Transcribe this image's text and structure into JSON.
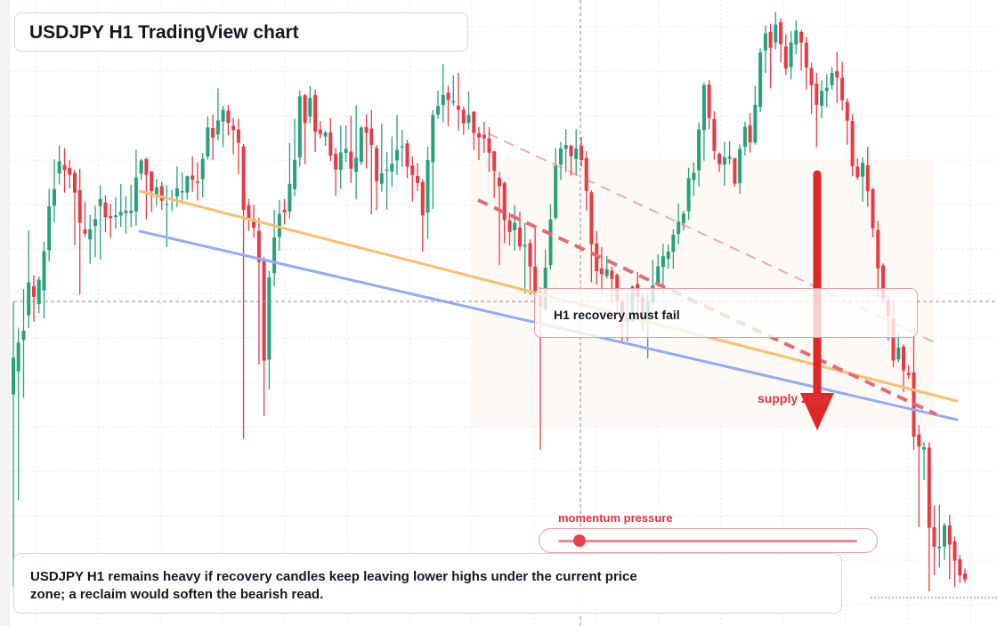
{
  "colors": {
    "up": "#26a17b",
    "down": "#ea3943",
    "trend_orange": "#f8bf6c",
    "trend_blue": "#93abf5",
    "resistance_dashed": "#e46b74",
    "arrow": "#de2828",
    "label_red": "#e0343f"
  },
  "title": {
    "text": "USDJPY H1 TradingView chart"
  },
  "callout": {
    "text": "H1 recovery must fail"
  },
  "supply_label": {
    "text": "supply zone"
  },
  "momentum": {
    "label": "momentum pressure",
    "level": 0.07
  },
  "summary": {
    "text": "USDJPY H1 remains heavy if recovery candles keep leaving lower highs under the current price zone; a reclaim would soften the bearish read."
  },
  "icons": {
    "arrow": "down-arrow-icon"
  },
  "chart_data": {
    "type": "candlestick",
    "symbol": "USDJPY",
    "timeframe": "H1",
    "ylim": [
      0,
      100
    ],
    "grid": true,
    "candles": [
      [
        37.0,
        42.85,
        51.74,
        6.24
      ],
      [
        40.69,
        45.29,
        47.66,
        20.05
      ],
      [
        45.7,
        47.17,
        53.81,
        36.45
      ],
      [
        49.65,
        54.92,
        63.17,
        47.59
      ],
      [
        54.26,
        52.59,
        56.03,
        48.64
      ],
      [
        51.4,
        55.32,
        55.83,
        49.98
      ],
      [
        53.59,
        59.86,
        61.36,
        49.11
      ],
      [
        60.03,
        67.04,
        69.82,
        58.21
      ],
      [
        67.14,
        69.78,
        74.55,
        64.5
      ],
      [
        72.29,
        74.24,
        76.76,
        70.53
      ],
      [
        73.63,
        72.84,
        76.34,
        69.24
      ],
      [
        73.18,
        72.07,
        74.4,
        69.91
      ],
      [
        72.39,
        69.24,
        72.88,
        60.86
      ],
      [
        69.6,
        64.42,
        73.07,
        52.93
      ],
      [
        63.35,
        62.65,
        67.73,
        62.15
      ],
      [
        61.75,
        63.4,
        65.65,
        57.85
      ],
      [
        63.88,
        64.98,
        67.15,
        58.92
      ],
      [
        67.08,
        68.22,
        70.36,
        58.53
      ],
      [
        67.69,
        65.33,
        68.8,
        62.88
      ],
      [
        65.47,
        65.16,
        67.44,
        61.98
      ],
      [
        65.33,
        65.6,
        68.51,
        63.45
      ],
      [
        65.55,
        66.18,
        70.6,
        63.72
      ],
      [
        65.93,
        66.34,
        68.66,
        62.71
      ],
      [
        65.96,
        66.38,
        70.5,
        63.72
      ],
      [
        66.21,
        71.65,
        76.06,
        63.9
      ],
      [
        72.24,
        74.36,
        74.68,
        71.22
      ],
      [
        74.6,
        72.08,
        74.81,
        64.99
      ],
      [
        72.64,
        69.47,
        70.02,
        66.13
      ],
      [
        68.89,
        70.07,
        71.39,
        67.1
      ],
      [
        70.25,
        67.94,
        70.99,
        66.52
      ],
      [
        67.34,
        67.39,
        70.38,
        60.54
      ],
      [
        68.13,
        68.33,
        69.71,
        66.29
      ],
      [
        68.59,
        69.93,
        73.43,
        66.93
      ],
      [
        69.26,
        69.48,
        72.43,
        67.58
      ],
      [
        69.23,
        71.84,
        71.95,
        68.09
      ],
      [
        71.94,
        71.28,
        74.98,
        69.36
      ],
      [
        70.99,
        70.78,
        74.07,
        67.97
      ],
      [
        71.38,
        74.63,
        75.57,
        68.47
      ],
      [
        75.0,
        79.64,
        81.4,
        74.51
      ],
      [
        79.55,
        78.03,
        81.68,
        74.48
      ],
      [
        78.52,
        80.76,
        85.89,
        77.54
      ],
      [
        80.58,
        82.43,
        83.08,
        76.52
      ],
      [
        82.31,
        80.36,
        83.26,
        78.38
      ],
      [
        79.91,
        79.22,
        81.16,
        75.31
      ],
      [
        79.32,
        77.21,
        81.04,
        72.22
      ],
      [
        76.64,
        66.49,
        76.99,
        29.88
      ],
      [
        67.23,
        64.89,
        68.24,
        63.16
      ],
      [
        65.03,
        63.63,
        67.33,
        62.02
      ],
      [
        63.12,
        58.13,
        65.21,
        41.8
      ],
      [
        58.45,
        42.38,
        58.9,
        33.51
      ],
      [
        42.55,
        55.68,
        56.72,
        37.74
      ],
      [
        56.35,
        62.07,
        66.44,
        54.28
      ],
      [
        62.13,
        65.81,
        68.05,
        59.91
      ],
      [
        66.5,
        66.06,
        68.18,
        64.15
      ],
      [
        66.22,
        70.63,
        77.16,
        65.05
      ],
      [
        69.78,
        74.46,
        81.05,
        68.71
      ],
      [
        74.86,
        84.62,
        85.54,
        73.39
      ],
      [
        84.79,
        80.34,
        85.04,
        73.76
      ],
      [
        81.4,
        84.34,
        86.28,
        80.29
      ],
      [
        84.85,
        78.94,
        85.69,
        75.71
      ],
      [
        79.3,
        78.61,
        80.65,
        77.96
      ],
      [
        78.18,
        78.83,
        79.09,
        76.69
      ],
      [
        78.86,
        75.13,
        81.14,
        74.28
      ],
      [
        75.43,
        72.95,
        76.39,
        68.74
      ],
      [
        72.91,
        75.64,
        79.89,
        69.87
      ],
      [
        75.57,
        76.22,
        79.98,
        74.06
      ],
      [
        75.78,
        73.05,
        81.51,
        70.79
      ],
      [
        72.55,
        74.8,
        83.19,
        68.17
      ],
      [
        74.15,
        79.63,
        79.89,
        73.67
      ],
      [
        79.7,
        78.77,
        81.73,
        73.1
      ],
      [
        79.47,
        76.82,
        82.45,
        65.77
      ],
      [
        76.35,
        71.07,
        76.8,
        66.43
      ],
      [
        70.63,
        72.31,
        80.29,
        69.37
      ],
      [
        72.7,
        72.92,
        75.73,
        66.51
      ],
      [
        72.57,
        73.86,
        78.18,
        70.16
      ],
      [
        74.36,
        76.07,
        81.65,
        72.0
      ],
      [
        76.54,
        76.63,
        79.25,
        73.35
      ],
      [
        77.08,
        73.37,
        77.69,
        71.55
      ],
      [
        73.58,
        72.03,
        75.0,
        67.78
      ],
      [
        71.89,
        70.76,
        73.95,
        69.47
      ],
      [
        70.93,
        65.59,
        71.35,
        59.8
      ],
      [
        66.06,
        74.43,
        76.59,
        61.81
      ],
      [
        74.09,
        81.64,
        82.41,
        66.6
      ],
      [
        81.72,
        83.07,
        85.53,
        81.01
      ],
      [
        83.23,
        84.83,
        89.79,
        80.43
      ],
      [
        85.18,
        84.05,
        86.29,
        79.85
      ],
      [
        83.64,
        83.88,
        87.96,
        83.08
      ],
      [
        83.13,
        82.47,
        88.37,
        79.14
      ],
      [
        82.47,
        80.3,
        82.99,
        78.46
      ],
      [
        80.36,
        81.64,
        85.4,
        79.3
      ],
      [
        82.14,
        78.75,
        82.27,
        76.05
      ],
      [
        78.69,
        78.04,
        79.71,
        74.44
      ],
      [
        78.46,
        77.91,
        80.53,
        75.6
      ],
      [
        77.89,
        75.61,
        79.69,
        72.53
      ],
      [
        75.82,
        72.71,
        75.89,
        68.36
      ],
      [
        71.61,
        70.26,
        72.52,
        57.7
      ],
      [
        70.76,
        64.85,
        70.99,
        61.18
      ],
      [
        64.8,
        62.95,
        66.1,
        60.78
      ],
      [
        63.21,
        64.39,
        67.22,
        59.98
      ],
      [
        63.65,
        60.64,
        66.15,
        60.02
      ],
      [
        60.6,
        60.89,
        64.41,
        53.14
      ],
      [
        61.15,
        57.44,
        61.76,
        52.87
      ],
      [
        57.41,
        52.95,
        63.55,
        48.64
      ],
      [
        53.54,
        51.15,
        54.1,
        28.17
      ],
      [
        50.61,
        57.22,
        60.1,
        50.05
      ],
      [
        57.66,
        64.95,
        67.38,
        56.93
      ],
      [
        65.17,
        73.49,
        76.35,
        64.89
      ],
      [
        73.71,
        76.27,
        77.32,
        71.25
      ],
      [
        76.2,
        76.85,
        79.36,
        72.52
      ],
      [
        76.74,
        75.07,
        76.91,
        71.96
      ],
      [
        74.6,
        76.25,
        79.37,
        72.06
      ],
      [
        76.74,
        74.42,
        78.07,
        73.43
      ],
      [
        74.76,
        69.51,
        75.88,
        66.35
      ],
      [
        69.27,
        60.99,
        69.6,
        54.91
      ],
      [
        61.12,
        56.68,
        63.11,
        54.57
      ],
      [
        57.1,
        56.22,
        60.54,
        53.04
      ],
      [
        55.89,
        56.97,
        59.09,
        55.53
      ],
      [
        56.77,
        55.43,
        57.42,
        51.5
      ],
      [
        56.09,
        51.98,
        56.37,
        50.14
      ],
      [
        51.9,
        50.08,
        52.16,
        45.49
      ],
      [
        49.68,
        48.61,
        53.53,
        45.46
      ],
      [
        48.69,
        54.23,
        54.41,
        48.49
      ],
      [
        54.61,
        52.59,
        56.55,
        50.08
      ],
      [
        52.45,
        49.44,
        53.06,
        47.15
      ],
      [
        49.95,
        51.84,
        53.22,
        42.73
      ],
      [
        51.64,
        54.4,
        58.49,
        51.37
      ],
      [
        54.62,
        57.47,
        59.35,
        54.17
      ],
      [
        57.36,
        59.06,
        61.1,
        52.99
      ],
      [
        58.61,
        59.81,
        60.93,
        57.09
      ],
      [
        59.77,
        62.48,
        63.36,
        57.04
      ],
      [
        62.61,
        64.57,
        67.49,
        60.93
      ],
      [
        64.33,
        65.87,
        66.34,
        63.18
      ],
      [
        66.27,
        71.55,
        73.18,
        64.89
      ],
      [
        71.21,
        72.41,
        74.05,
        68.67
      ],
      [
        72.8,
        79.35,
        80.44,
        70.22
      ],
      [
        79.21,
        86.41,
        86.76,
        74.32
      ],
      [
        86.49,
        81.13,
        87.19,
        79.37
      ],
      [
        81.0,
        75.9,
        82.22,
        74.52
      ],
      [
        75.46,
        73.78,
        75.66,
        72.56
      ],
      [
        73.71,
        74.89,
        77.28,
        70.34
      ],
      [
        74.62,
        74.98,
        77.44,
        73.75
      ],
      [
        74.74,
        70.65,
        74.82,
        70.19
      ],
      [
        70.72,
        76.22,
        76.92,
        69.05
      ],
      [
        76.56,
        79.72,
        80.54,
        75.16
      ],
      [
        79.99,
        77.27,
        81.98,
        75.66
      ],
      [
        77.23,
        83.26,
        86.23,
        76.9
      ],
      [
        82.88,
        91.6,
        92.29,
        82.13
      ],
      [
        91.93,
        94.65,
        95.92,
        88.33
      ],
      [
        94.92,
        92.37,
        96.19,
        85.9
      ],
      [
        93.24,
        96.08,
        98.11,
        92.13
      ],
      [
        96.43,
        92.93,
        97.08,
        90.06
      ],
      [
        92.57,
        89.06,
        94.53,
        88.01
      ],
      [
        89.29,
        93.23,
        95.02,
        87.32
      ],
      [
        92.92,
        95.12,
        96.72,
        91.38
      ],
      [
        94.89,
        93.21,
        95.24,
        88.73
      ],
      [
        93.18,
        89.22,
        94.08,
        85.69
      ],
      [
        89.16,
        86.41,
        90.03,
        81.8
      ],
      [
        86.65,
        83.25,
        88.36,
        76.48
      ],
      [
        83.11,
        85.48,
        87.16,
        81.09
      ],
      [
        85.48,
        85.99,
        88.15,
        82.85
      ],
      [
        86.41,
        88.35,
        89.26,
        85.64
      ],
      [
        88.62,
        87.61,
        91.65,
        83.56
      ],
      [
        87.57,
        83.98,
        90.12,
        82.38
      ],
      [
        83.72,
        80.74,
        84.28,
        76.88
      ],
      [
        80.7,
        73.43,
        81.76,
        71.85
      ],
      [
        73.39,
        71.69,
        74.75,
        71.29
      ],
      [
        71.79,
        74.0,
        74.85,
        67.78
      ],
      [
        73.61,
        69.47,
        76.54,
        67.0
      ],
      [
        69.79,
        63.56,
        69.98,
        62.1
      ],
      [
        63.28,
        57.13,
        64.71,
        52.56
      ],
      [
        57.58,
        52.33,
        57.91,
        51.55
      ],
      [
        52.12,
        49.55,
        52.63,
        45.61
      ],
      [
        49.16,
        42.41,
        51.82,
        41.32
      ],
      [
        42.58,
        44.48,
        46.89,
        42.14
      ],
      [
        44.64,
        40.84,
        44.98,
        37.35
      ],
      [
        40.46,
        40.07,
        41.68,
        39.48
      ],
      [
        40.5,
        30.23,
        46.5,
        28.12
      ],
      [
        30.6,
        28.69,
        32.05,
        15.8
      ],
      [
        28.17,
        28.57,
        29.35,
        23.29
      ],
      [
        28.49,
        15.71,
        29.34,
        5.53
      ],
      [
        15.78,
        12.7,
        19.28,
        8.12
      ],
      [
        12.46,
        12.7,
        19.37,
        9.32
      ],
      [
        12.7,
        16.08,
        16.47,
        10.55
      ],
      [
        16.07,
        13.0,
        17.76,
        7.49
      ],
      [
        13.5,
        10.44,
        14.31,
        6.24
      ],
      [
        10.65,
        8.08,
        11.32,
        6.86
      ],
      [
        8.38,
        7.43,
        9.17,
        6.92
      ]
    ]
  }
}
